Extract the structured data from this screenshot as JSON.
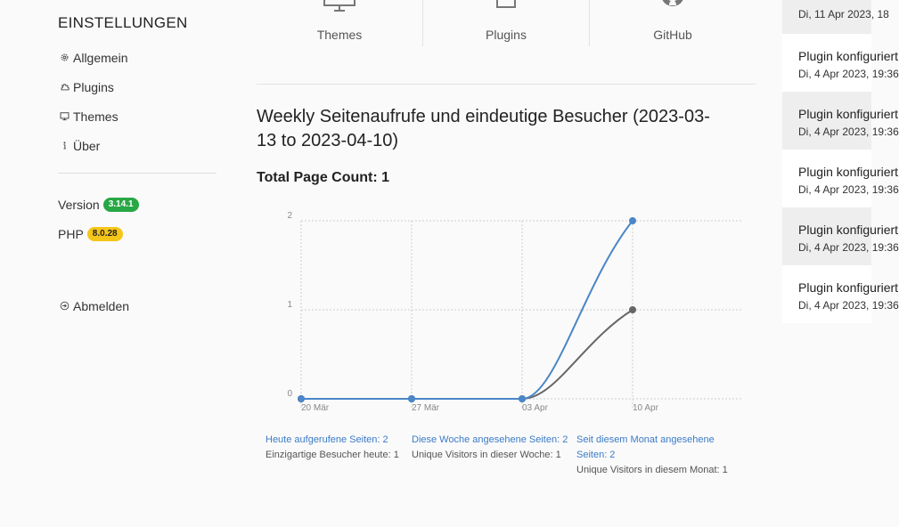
{
  "sidebar": {
    "heading": "EINSTELLUNGEN",
    "items": [
      {
        "label": "Allgemein",
        "icon": "gear-icon"
      },
      {
        "label": "Plugins",
        "icon": "puzzle-icon"
      },
      {
        "label": "Themes",
        "icon": "monitor-icon"
      },
      {
        "label": "Über",
        "icon": "info-icon"
      }
    ],
    "version_label": "Version",
    "version_value": "3.14.1",
    "php_label": "PHP",
    "php_value": "8.0.28",
    "logout_label": "Abmelden"
  },
  "toplinks": [
    {
      "label": "Themes",
      "icon": "monitor-icon"
    },
    {
      "label": "Plugins",
      "icon": "puzzle-icon"
    },
    {
      "label": "GitHub",
      "icon": "github-icon"
    }
  ],
  "main": {
    "title": "Weekly Seitenaufrufe und eindeutige Besucher (2023-03-13 to 2023-04-10)",
    "total": "Total Page Count: 1"
  },
  "chart_data": {
    "type": "line",
    "categories": [
      "20 Mär",
      "27 Mär",
      "03 Apr",
      "10 Apr"
    ],
    "y_ticks": [
      "0",
      "1",
      "2"
    ],
    "ylim": [
      0,
      2
    ],
    "grid": true,
    "series": [
      {
        "values": [
          0,
          0,
          0,
          2
        ],
        "color": "#4a86c8"
      },
      {
        "values": [
          0,
          0,
          0,
          1
        ],
        "color": "#666666"
      }
    ]
  },
  "stats": {
    "today_link": "Heute aufgerufene Seiten: 2",
    "today_text": "Einzigartige Besucher heute: 1",
    "week_link": "Diese Woche angesehene Seiten: 2",
    "week_text": "Unique Visitors in dieser Woche: 1",
    "month_link": "Seit diesem Monat angesehene Seiten: 2",
    "month_text": "Unique Visitors in diesem Monat: 1"
  },
  "notifications": [
    {
      "title": "",
      "date": "Di, 11 Apr 2023, 18"
    },
    {
      "title": "Plugin konfiguriert",
      "date": "Di, 4 Apr 2023, 19:36"
    },
    {
      "title": "Plugin konfiguriert",
      "date": "Di, 4 Apr 2023, 19:36"
    },
    {
      "title": "Plugin konfiguriert",
      "date": "Di, 4 Apr 2023, 19:36"
    },
    {
      "title": "Plugin konfiguriert",
      "date": "Di, 4 Apr 2023, 19:36"
    },
    {
      "title": "Plugin konfiguriert",
      "date": "Di, 4 Apr 2023, 19:36"
    }
  ]
}
